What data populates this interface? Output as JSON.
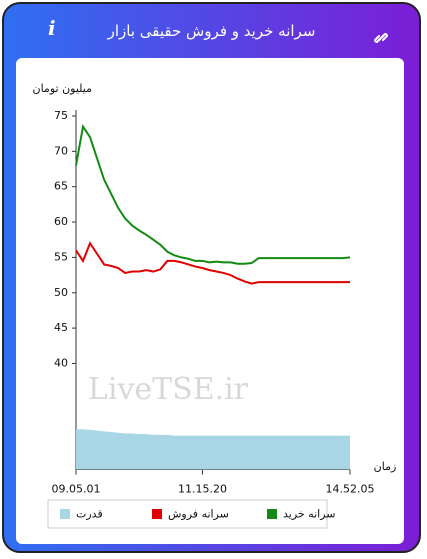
{
  "header": {
    "title": "سرانه خرید و فروش حقیقی بازار",
    "info": "i"
  },
  "chart_data": {
    "type": "line",
    "y_label": "میلیون تومان",
    "x_label": "زمان",
    "watermark": "LiveTSE.ir",
    "categories": [
      "09.05.01",
      null,
      null,
      null,
      null,
      null,
      null,
      null,
      null,
      null,
      null,
      null,
      null,
      null,
      null,
      null,
      null,
      null,
      "11.15.20",
      null,
      null,
      null,
      null,
      null,
      null,
      null,
      null,
      null,
      null,
      null,
      null,
      null,
      null,
      null,
      null,
      null,
      null,
      null,
      null,
      "14.52.05"
    ],
    "series": [
      {
        "name": "سرانه خرید",
        "color": "#138a13",
        "values": [
          68,
          73.5,
          72,
          69,
          66,
          64,
          62,
          60.5,
          59.5,
          58.8,
          58.2,
          57.5,
          56.8,
          55.8,
          55.3,
          55,
          54.8,
          54.5,
          54.5,
          54.3,
          54.4,
          54.3,
          54.3,
          54.1,
          54.1,
          54.2,
          54.9,
          54.9,
          54.9,
          54.9,
          54.9,
          54.9,
          54.9,
          54.9,
          54.9,
          54.9,
          54.9,
          54.9,
          54.9,
          55
        ]
      },
      {
        "name": "سرانه فروش",
        "color": "#e00000",
        "values": [
          56,
          54.5,
          57,
          55.5,
          54,
          53.8,
          53.5,
          52.8,
          53,
          53,
          53.2,
          53,
          53.3,
          54.5,
          54.5,
          54.3,
          54,
          53.7,
          53.5,
          53.2,
          53,
          52.8,
          52.5,
          52,
          51.6,
          51.3,
          51.5,
          51.5,
          51.5,
          51.5,
          51.5,
          51.5,
          51.5,
          51.5,
          51.5,
          51.5,
          51.5,
          51.5,
          51.5,
          51.5
        ]
      },
      {
        "name": "قدرت",
        "color": "#a9d6e5",
        "type": "area",
        "values": [
          30.7,
          30.7,
          30.6,
          30.5,
          30.4,
          30.3,
          30.2,
          30.1,
          30.1,
          30,
          30,
          29.9,
          29.9,
          29.9,
          29.8,
          29.8,
          29.8,
          29.8,
          29.8,
          29.8,
          29.8,
          29.8,
          29.8,
          29.8,
          29.8,
          29.8,
          29.8,
          29.8,
          29.8,
          29.8,
          29.8,
          29.8,
          29.8,
          29.8,
          29.8,
          29.8,
          29.8,
          29.8,
          29.8,
          29.8
        ]
      }
    ],
    "ylim": [
      25,
      75
    ],
    "yticks": [
      40,
      45,
      50,
      55,
      60,
      65,
      70,
      75
    ]
  }
}
